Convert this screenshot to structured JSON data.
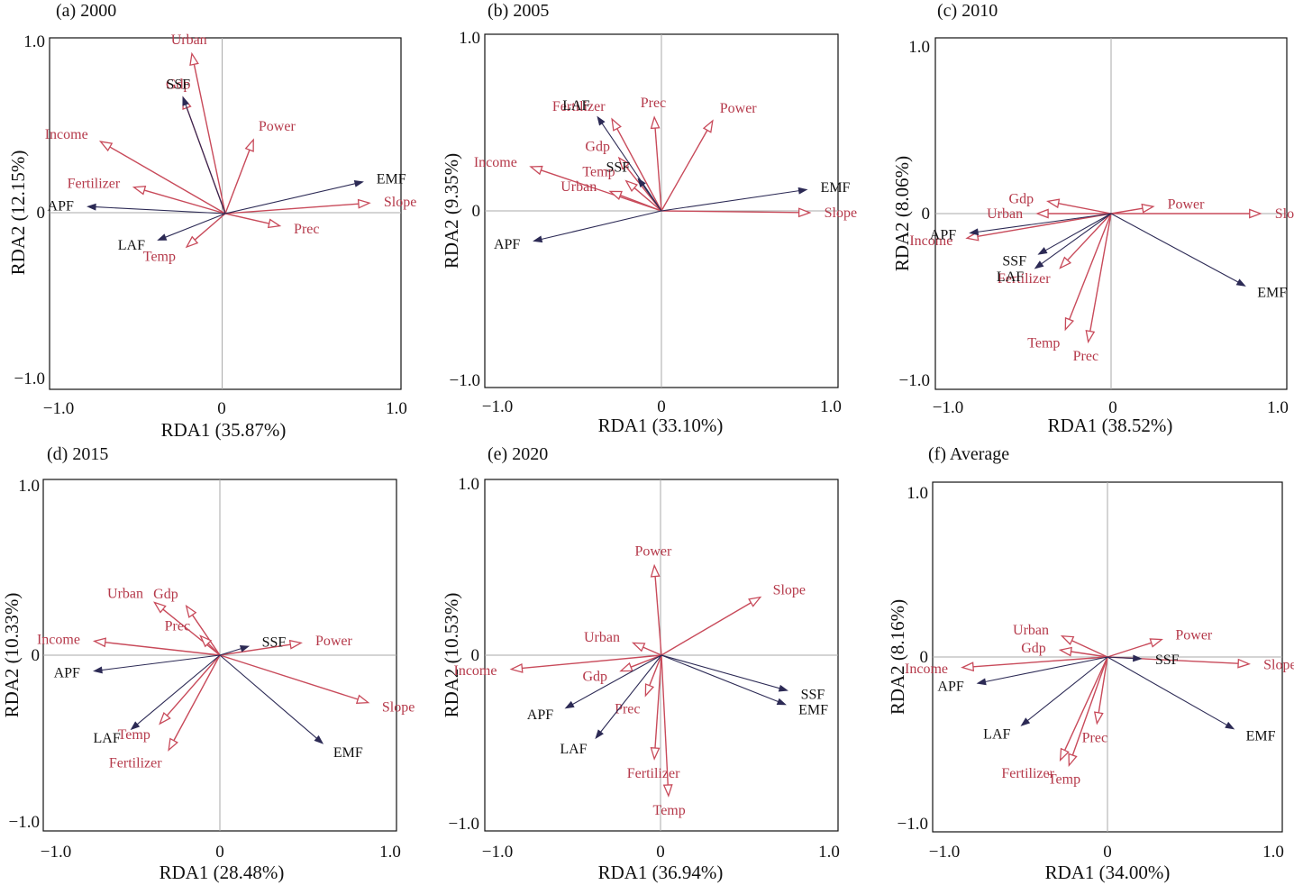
{
  "figure": {
    "colors": {
      "explanatory": "#c84a5a",
      "explanatory_label": "#b5394a",
      "response": "#2c2a55",
      "axis": "#111111",
      "zero_line": "#aaaaaa"
    }
  },
  "chart_data": [
    {
      "type": "scatter",
      "subtype": "rda-biplot",
      "title": "(a) 2000",
      "xlabel": "RDA1 (35.87%)",
      "ylabel": "RDA2 (12.15%)",
      "xlim": [
        -1.0,
        1.0
      ],
      "ylim": [
        -1.0,
        1.0
      ],
      "xticks": [
        "−1.0",
        "0",
        "1.0"
      ],
      "yticks": [
        "1.0",
        "0",
        "−1.0"
      ],
      "response": [
        {
          "name": "SSF",
          "x": -0.24,
          "y": 0.66
        },
        {
          "name": "EMF",
          "x": 0.78,
          "y": 0.18
        },
        {
          "name": "APF",
          "x": -0.78,
          "y": 0.04
        },
        {
          "name": "LAF",
          "x": -0.38,
          "y": -0.15
        }
      ],
      "explanatory": [
        {
          "name": "Urban",
          "x": -0.19,
          "y": 0.91
        },
        {
          "name": "Gdp",
          "x": -0.24,
          "y": 0.66
        },
        {
          "name": "Power",
          "x": 0.16,
          "y": 0.42
        },
        {
          "name": "Income",
          "x": -0.71,
          "y": 0.41
        },
        {
          "name": "Fertilizer",
          "x": -0.52,
          "y": 0.15
        },
        {
          "name": "Prec",
          "x": 0.31,
          "y": -0.07
        },
        {
          "name": "Temp",
          "x": -0.22,
          "y": -0.19
        },
        {
          "name": "Slope",
          "x": 0.82,
          "y": 0.06
        }
      ]
    },
    {
      "type": "scatter",
      "subtype": "rda-biplot",
      "title": "(b) 2005",
      "xlabel": "RDA1 (33.10%)",
      "ylabel": "RDA2 (9.35%)",
      "xlim": [
        -1.0,
        1.0
      ],
      "ylim": [
        -1.0,
        1.0
      ],
      "xticks": [
        "−1.0",
        "0",
        "1.0"
      ],
      "yticks": [
        "1.0",
        "0",
        "−1.0"
      ],
      "response": [
        {
          "name": "LAF",
          "x": -0.36,
          "y": 0.53
        },
        {
          "name": "SSF",
          "x": -0.13,
          "y": 0.18
        },
        {
          "name": "EMF",
          "x": 0.82,
          "y": 0.12
        },
        {
          "name": "APF",
          "x": -0.72,
          "y": -0.17
        }
      ],
      "explanatory": [
        {
          "name": "Fertilizer",
          "x": -0.28,
          "y": 0.52
        },
        {
          "name": "Prec",
          "x": -0.04,
          "y": 0.53
        },
        {
          "name": "Power",
          "x": 0.29,
          "y": 0.51
        },
        {
          "name": "Gdp",
          "x": -0.24,
          "y": 0.3
        },
        {
          "name": "Temp",
          "x": -0.2,
          "y": 0.17
        },
        {
          "name": "Income",
          "x": -0.74,
          "y": 0.25
        },
        {
          "name": "Urban",
          "x": -0.29,
          "y": 0.11
        },
        {
          "name": "Slope",
          "x": 0.84,
          "y": -0.01
        }
      ]
    },
    {
      "type": "scatter",
      "subtype": "rda-biplot",
      "title": "(c) 2010",
      "xlabel": "RDA1 (38.52%)",
      "ylabel": "RDA2 (8.06%)",
      "xlim": [
        -1.0,
        1.0
      ],
      "ylim": [
        -1.0,
        1.0
      ],
      "xticks": [
        "−1.0",
        "0",
        "1.0"
      ],
      "yticks": [
        "1.0",
        "0",
        "−1.0"
      ],
      "response": [
        {
          "name": "APF",
          "x": -0.8,
          "y": -0.11
        },
        {
          "name": "SSF",
          "x": -0.41,
          "y": -0.23
        },
        {
          "name": "LAF",
          "x": -0.43,
          "y": -0.31
        },
        {
          "name": "EMF",
          "x": 0.76,
          "y": -0.41
        }
      ],
      "explanatory": [
        {
          "name": "Gdp",
          "x": -0.36,
          "y": 0.07
        },
        {
          "name": "Urban",
          "x": -0.42,
          "y": 0.0
        },
        {
          "name": "Income",
          "x": -0.82,
          "y": -0.14
        },
        {
          "name": "Power",
          "x": 0.24,
          "y": 0.04
        },
        {
          "name": "Slope",
          "x": 0.85,
          "y": 0.0
        },
        {
          "name": "Fertilizer",
          "x": -0.29,
          "y": -0.31
        },
        {
          "name": "Temp",
          "x": -0.26,
          "y": -0.66
        },
        {
          "name": "Prec",
          "x": -0.13,
          "y": -0.73
        }
      ]
    },
    {
      "type": "scatter",
      "subtype": "rda-biplot",
      "title": "(d) 2015",
      "xlabel": "RDA1 (28.48%)",
      "ylabel": "RDA2 (10.33%)",
      "xlim": [
        -1.0,
        1.0
      ],
      "ylim": [
        -1.0,
        1.0
      ],
      "xticks": [
        "−1.0",
        "0",
        "1.0"
      ],
      "yticks": [
        "1.0",
        "0",
        "−1.0"
      ],
      "response": [
        {
          "name": "SSF",
          "x": 0.16,
          "y": 0.05
        },
        {
          "name": "APF",
          "x": -0.71,
          "y": -0.09
        },
        {
          "name": "LAF",
          "x": -0.5,
          "y": -0.42
        },
        {
          "name": "EMF",
          "x": 0.58,
          "y": -0.5
        }
      ],
      "explanatory": [
        {
          "name": "Urban",
          "x": -0.37,
          "y": 0.3
        },
        {
          "name": "Gdp",
          "x": -0.19,
          "y": 0.28
        },
        {
          "name": "Prec",
          "x": -0.11,
          "y": 0.11
        },
        {
          "name": "Income",
          "x": -0.71,
          "y": 0.08
        },
        {
          "name": "Power",
          "x": 0.46,
          "y": 0.07
        },
        {
          "name": "Slope",
          "x": 0.84,
          "y": -0.27
        },
        {
          "name": "Temp",
          "x": -0.34,
          "y": -0.39
        },
        {
          "name": "Fertilizer",
          "x": -0.29,
          "y": -0.54
        }
      ]
    },
    {
      "type": "scatter",
      "subtype": "rda-biplot",
      "title": "(e) 2020",
      "xlabel": "RDA1 (36.94%)",
      "ylabel": "RDA2 (10.53%)",
      "xlim": [
        -1.0,
        1.0
      ],
      "ylim": [
        -1.0,
        1.0
      ],
      "xticks": [
        "−1.0",
        "0",
        "1.0"
      ],
      "yticks": [
        "1.0",
        "0",
        "−1.0"
      ],
      "response": [
        {
          "name": "SSF",
          "x": 0.71,
          "y": -0.2
        },
        {
          "name": "EMF",
          "x": 0.7,
          "y": -0.28
        },
        {
          "name": "APF",
          "x": -0.54,
          "y": -0.3
        },
        {
          "name": "LAF",
          "x": -0.37,
          "y": -0.47
        }
      ],
      "explanatory": [
        {
          "name": "Power",
          "x": -0.04,
          "y": 0.51
        },
        {
          "name": "Slope",
          "x": 0.56,
          "y": 0.33
        },
        {
          "name": "Urban",
          "x": -0.16,
          "y": 0.07
        },
        {
          "name": "Income",
          "x": -0.85,
          "y": -0.08
        },
        {
          "name": "Gdp",
          "x": -0.23,
          "y": -0.09
        },
        {
          "name": "Prec",
          "x": -0.09,
          "y": -0.23
        },
        {
          "name": "Fertilizer",
          "x": -0.04,
          "y": -0.59
        },
        {
          "name": "Temp",
          "x": 0.04,
          "y": -0.8
        }
      ]
    },
    {
      "type": "scatter",
      "subtype": "rda-biplot",
      "title": "(f) Average",
      "xlabel": "RDA1 (34.00%)",
      "ylabel": "RDA2 (8.16%)",
      "xlim": [
        -1.0,
        1.0
      ],
      "ylim": [
        -1.0,
        1.0
      ],
      "xticks": [
        "−1.0",
        "0",
        "1.0"
      ],
      "yticks": [
        "1.0",
        "0",
        "−1.0"
      ],
      "response": [
        {
          "name": "SSF",
          "x": 0.19,
          "y": -0.01
        },
        {
          "name": "APF",
          "x": -0.74,
          "y": -0.15
        },
        {
          "name": "LAF",
          "x": -0.49,
          "y": -0.39
        },
        {
          "name": "EMF",
          "x": 0.72,
          "y": -0.41
        }
      ],
      "explanatory": [
        {
          "name": "Urban",
          "x": -0.26,
          "y": 0.12
        },
        {
          "name": "Gdp",
          "x": -0.27,
          "y": 0.04
        },
        {
          "name": "Power",
          "x": 0.31,
          "y": 0.1
        },
        {
          "name": "Income",
          "x": -0.83,
          "y": -0.06
        },
        {
          "name": "Slope",
          "x": 0.81,
          "y": -0.04
        },
        {
          "name": "Prec",
          "x": -0.06,
          "y": -0.38
        },
        {
          "name": "Fertilizer",
          "x": -0.27,
          "y": -0.59
        },
        {
          "name": "Temp",
          "x": -0.22,
          "y": -0.62
        }
      ]
    }
  ]
}
